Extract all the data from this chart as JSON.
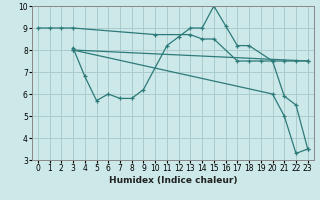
{
  "xlabel": "Humidex (Indice chaleur)",
  "background_color": "#cce8e8",
  "grid_color": "#aacccc",
  "line_color": "#2d7a7a",
  "xlim": [
    -0.5,
    23.5
  ],
  "ylim": [
    3,
    10
  ],
  "yticks": [
    3,
    4,
    5,
    6,
    7,
    8,
    9,
    10
  ],
  "xticks": [
    0,
    1,
    2,
    3,
    4,
    5,
    6,
    7,
    8,
    9,
    10,
    11,
    12,
    13,
    14,
    15,
    16,
    17,
    18,
    19,
    20,
    21,
    22,
    23
  ],
  "lines": [
    {
      "x": [
        0,
        1,
        2,
        3,
        10,
        13,
        14,
        15,
        17,
        18,
        19,
        20,
        21,
        22,
        23
      ],
      "y": [
        9,
        9,
        9,
        9,
        8.7,
        8.7,
        8.5,
        8.5,
        7.5,
        7.5,
        7.5,
        7.5,
        7.5,
        7.5,
        7.5
      ]
    },
    {
      "x": [
        3,
        4,
        5,
        6,
        7,
        8,
        9,
        11,
        12,
        13,
        14,
        15,
        16,
        17,
        18,
        20,
        21,
        22,
        23
      ],
      "y": [
        8.1,
        6.8,
        5.7,
        6.0,
        5.8,
        5.8,
        6.2,
        8.2,
        8.6,
        9.0,
        9.0,
        10.0,
        9.1,
        8.2,
        8.2,
        7.5,
        5.9,
        5.5,
        3.5
      ]
    },
    {
      "x": [
        3,
        23
      ],
      "y": [
        8.0,
        7.5
      ]
    },
    {
      "x": [
        3,
        20,
        21,
        22,
        23
      ],
      "y": [
        8.0,
        6.0,
        5.0,
        3.3,
        3.5
      ]
    }
  ]
}
